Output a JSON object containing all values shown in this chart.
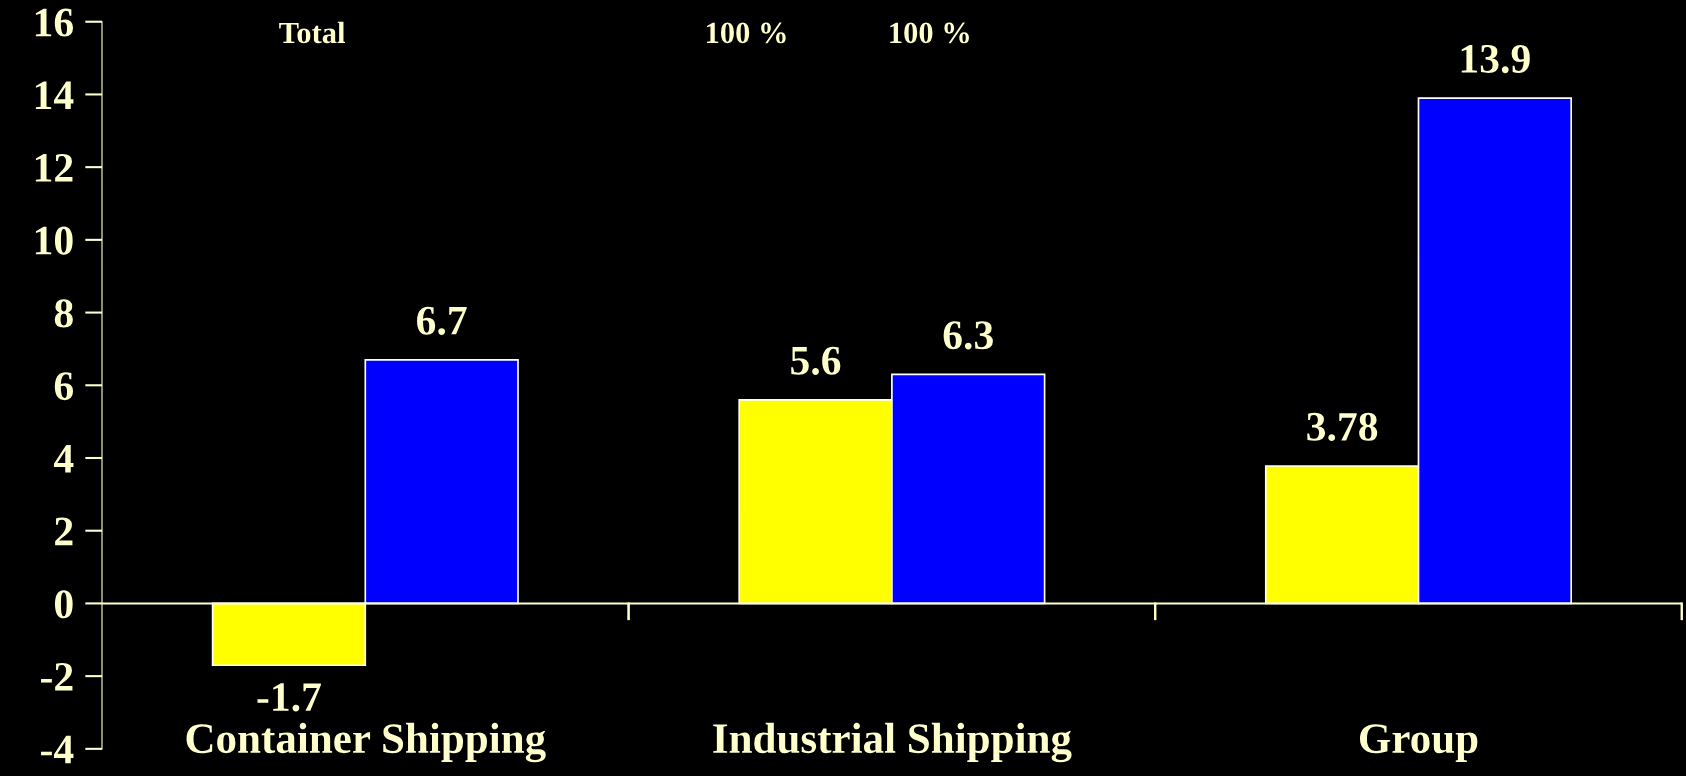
{
  "chart_data": {
    "type": "bar",
    "categories": [
      "Container Shipping",
      "Industrial Shipping",
      "Group"
    ],
    "series": [
      {
        "color": "#ffff00",
        "values": [
          -1.7,
          5.6,
          3.78
        ]
      },
      {
        "color": "#0000ff",
        "values": [
          6.7,
          6.3,
          13.9
        ]
      }
    ],
    "ylim": [
      -4,
      16
    ],
    "yticks": [
      -4,
      -2,
      0,
      2,
      4,
      6,
      8,
      10,
      12,
      14,
      16
    ],
    "ref_lines": [
      {
        "axis": "y",
        "value": 0,
        "color": "#ffffcc"
      }
    ],
    "data_labels": true,
    "grid": false,
    "legend": false,
    "annotations": [
      "Total",
      "100 %",
      "100 %"
    ]
  }
}
